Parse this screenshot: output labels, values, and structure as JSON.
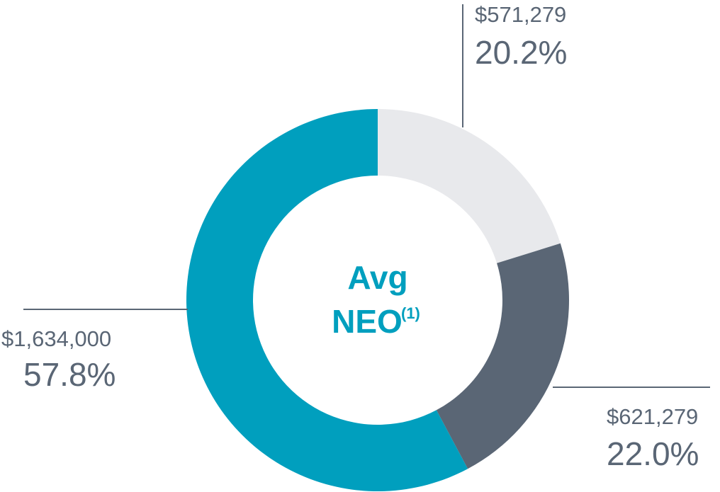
{
  "chart_data": {
    "type": "pie",
    "style": "donut",
    "center_label": {
      "line1": "Avg",
      "line2": "NEO",
      "superscript": "(1)",
      "color": "#009fbe"
    },
    "slices": [
      {
        "amount": "$571,279",
        "percent": "20.2%",
        "value": 20.2,
        "color": "#e8e9ec"
      },
      {
        "amount": "$621,279",
        "percent": "22.0%",
        "value": 22.0,
        "color": "#5a6675"
      },
      {
        "amount": "$1,634,000",
        "percent": "57.8%",
        "value": 57.8,
        "color": "#009fbe"
      }
    ],
    "leader_line_color": "#5a6675",
    "label_color": "#5a6675"
  }
}
